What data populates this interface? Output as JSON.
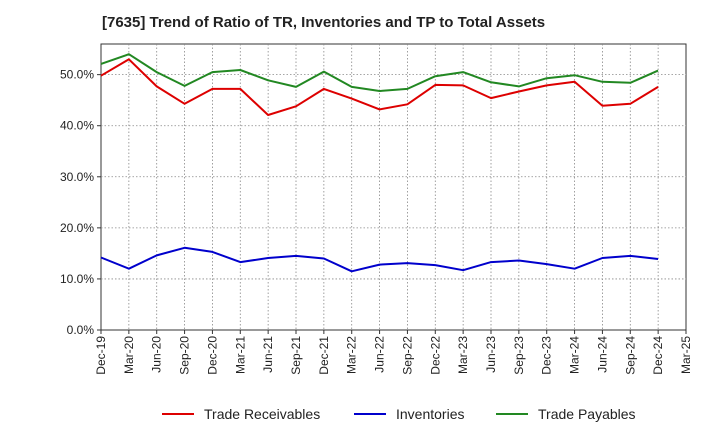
{
  "chart_data": {
    "type": "line",
    "title": "[7635]  Trend of Ratio of TR, Inventories and TP to Total Assets",
    "xlabel": "",
    "ylabel": "",
    "ylim": [
      0,
      56
    ],
    "yticks": [
      0,
      10,
      20,
      30,
      40,
      50
    ],
    "ytick_labels": [
      "0.0%",
      "10.0%",
      "20.0%",
      "30.0%",
      "40.0%",
      "50.0%"
    ],
    "xtick_labels": [
      "Dec-19",
      "Mar-20",
      "Jun-20",
      "Sep-20",
      "Dec-20",
      "Mar-21",
      "Jun-21",
      "Sep-21",
      "Dec-21",
      "Mar-22",
      "Jun-22",
      "Sep-22",
      "Dec-22",
      "Mar-23",
      "Jun-23",
      "Sep-23",
      "Dec-23",
      "Mar-24",
      "Jun-24",
      "Sep-24",
      "Dec-24",
      "Mar-25"
    ],
    "x": [
      "Dec-19",
      "Mar-20",
      "Jun-20",
      "Sep-20",
      "Dec-20",
      "Mar-21",
      "Jun-21",
      "Sep-21",
      "Dec-21",
      "Mar-22",
      "Jun-22",
      "Sep-22",
      "Dec-22",
      "Mar-23",
      "Jun-23",
      "Sep-23",
      "Dec-23",
      "Mar-24",
      "Jun-24",
      "Sep-24",
      "Dec-24"
    ],
    "grid": true,
    "legend_position": "bottom",
    "series": [
      {
        "name": "Trade Receivables",
        "color": "#dd0000",
        "values": [
          49.8,
          53.0,
          47.7,
          44.3,
          47.2,
          47.2,
          42.1,
          43.8,
          47.2,
          45.3,
          43.2,
          44.2,
          48.0,
          47.9,
          45.4,
          46.7,
          47.9,
          48.6,
          43.9,
          44.3,
          47.6
        ]
      },
      {
        "name": "Inventories",
        "color": "#0000cc",
        "values": [
          14.2,
          12.0,
          14.6,
          16.1,
          15.3,
          13.3,
          14.1,
          14.5,
          14.0,
          11.5,
          12.8,
          13.1,
          12.7,
          11.7,
          13.3,
          13.6,
          12.9,
          12.0,
          14.1,
          14.5,
          13.9
        ]
      },
      {
        "name": "Trade Payables",
        "color": "#228822",
        "values": [
          52.1,
          54.0,
          50.5,
          47.8,
          50.5,
          50.9,
          48.9,
          47.6,
          50.6,
          47.6,
          46.8,
          47.2,
          49.7,
          50.5,
          48.5,
          47.7,
          49.3,
          49.9,
          48.6,
          48.4,
          50.8
        ]
      }
    ]
  }
}
